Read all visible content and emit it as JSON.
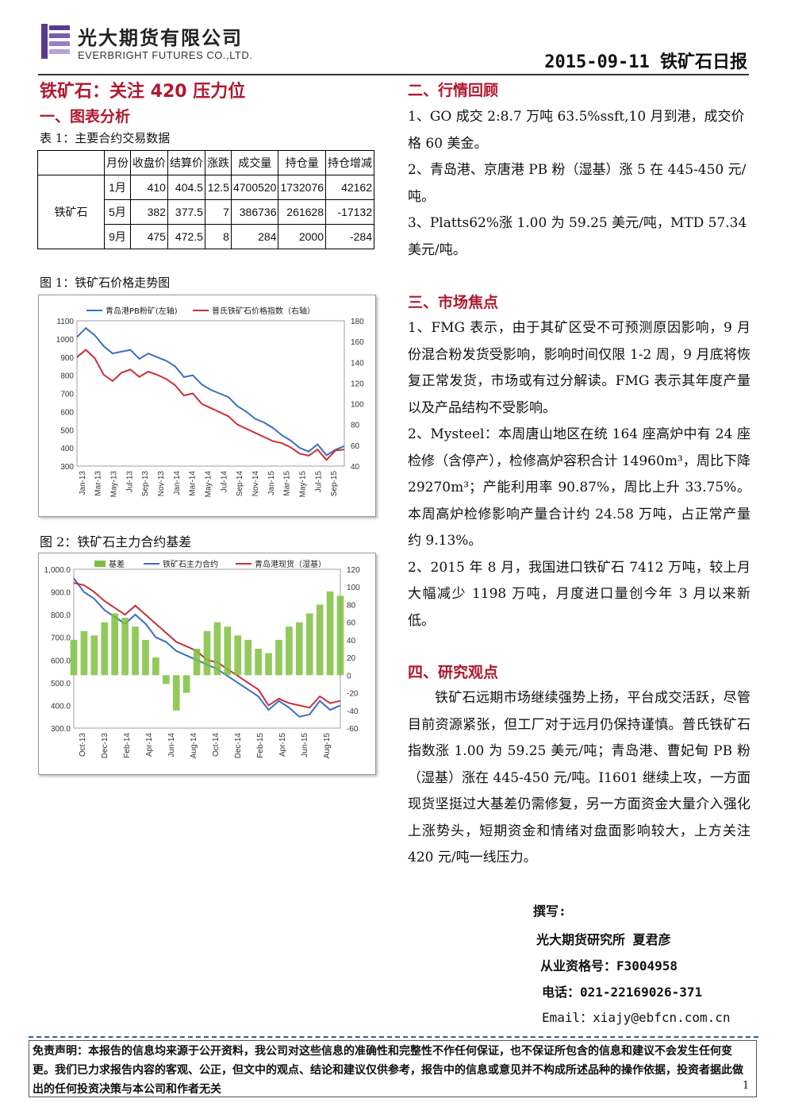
{
  "header": {
    "company_cn": "光大期货有限公司",
    "company_en": "EVERBRIGHT FUTURES CO.,LTD.",
    "date_title": "2015-09-11 铁矿石日报"
  },
  "title": "铁矿石：关注 420 压力位",
  "section1": {
    "heading": "一、图表分析",
    "table_caption": "表 1：主要合约交易数据",
    "table": {
      "headers": [
        "月份",
        "收盘价",
        "结算价",
        "涨跌",
        "成交量",
        "持仓量",
        "持仓增减"
      ],
      "row_label": "铁矿石",
      "rows": [
        [
          "1月",
          "410",
          "404.5",
          "12.5",
          "4700520",
          "1732076",
          "42162"
        ],
        [
          "5月",
          "382",
          "377.5",
          "7",
          "386736",
          "261628",
          "-17132"
        ],
        [
          "9月",
          "475",
          "472.5",
          "8",
          "284",
          "2000",
          "-284"
        ]
      ]
    },
    "fig1_caption": "图 1：铁矿石价格走势图",
    "fig2_caption": "图 2：铁矿石主力合约基差"
  },
  "chart_data": [
    {
      "type": "line",
      "legend": [
        "青岛港PB粉矿(左轴)",
        "普氏铁矿石价格指数（右轴）"
      ],
      "x_labels": [
        "Jan-13",
        "Mar-13",
        "May-13",
        "Jul-13",
        "Sep-13",
        "Nov-13",
        "Jan-14",
        "Mar-14",
        "May-14",
        "Jul-14",
        "Sep-14",
        "Nov-14",
        "Jan-15",
        "Mar-15",
        "May-15",
        "Jul-15",
        "Sep-15"
      ],
      "y_left_ticks": [
        "1100",
        "1000",
        "900",
        "800",
        "700",
        "600",
        "500",
        "400",
        "300"
      ],
      "y_right_ticks": [
        "180",
        "160",
        "140",
        "120",
        "100",
        "80",
        "60",
        "40"
      ],
      "ylim_left": [
        300,
        1100
      ],
      "ylim_right": [
        40,
        180
      ],
      "series": [
        {
          "name": "青岛港PB粉矿(左轴)",
          "axis": "left",
          "color": "#3a6fc0",
          "values": [
            1010,
            1060,
            1020,
            960,
            920,
            930,
            940,
            890,
            920,
            900,
            880,
            850,
            790,
            800,
            750,
            720,
            700,
            680,
            630,
            600,
            560,
            540,
            510,
            470,
            440,
            400,
            380,
            420,
            360,
            390,
            410
          ]
        },
        {
          "name": "普氏铁矿石价格指数（右轴）",
          "axis": "right",
          "color": "#c8303a",
          "values": [
            145,
            152,
            144,
            128,
            122,
            130,
            133,
            126,
            131,
            128,
            124,
            118,
            108,
            110,
            100,
            96,
            92,
            88,
            80,
            76,
            72,
            68,
            64,
            62,
            58,
            52,
            50,
            56,
            46,
            55,
            56
          ]
        }
      ]
    },
    {
      "type": "line",
      "legend": [
        "基差",
        "铁矿石主力合约",
        "青岛港现货（湿基）"
      ],
      "x_labels": [
        "Oct-13",
        "Dec-13",
        "Feb-14",
        "Apr-14",
        "Jun-14",
        "Aug-14",
        "Oct-14",
        "Dec-14",
        "Feb-15",
        "Apr-15",
        "Jun-15",
        "Aug-15"
      ],
      "y_left_ticks": [
        "1,000.0",
        "900.0",
        "800.0",
        "700.0",
        "600.0",
        "500.0",
        "400.0",
        "300.0"
      ],
      "y_right_ticks": [
        "120",
        "100",
        "80",
        "60",
        "40",
        "20",
        "0",
        "-20",
        "-40",
        "-60"
      ],
      "ylim_left": [
        300,
        1000
      ],
      "ylim_right": [
        -60,
        120
      ],
      "series": [
        {
          "name": "铁矿石主力合约",
          "axis": "left",
          "color": "#3a6fc0",
          "values": [
            960,
            900,
            870,
            820,
            790,
            760,
            800,
            760,
            700,
            680,
            640,
            620,
            600,
            580,
            560,
            530,
            500,
            470,
            440,
            380,
            420,
            390,
            350,
            360,
            420,
            380,
            400
          ]
        },
        {
          "name": "青岛港现货（湿基）",
          "axis": "left",
          "color": "#c8303a",
          "values": [
            940,
            930,
            900,
            860,
            830,
            800,
            840,
            800,
            760,
            720,
            680,
            660,
            640,
            600,
            590,
            560,
            530,
            500,
            470,
            400,
            430,
            410,
            400,
            390,
            440,
            410,
            420
          ]
        },
        {
          "name": "基差",
          "axis": "right",
          "color": "#7fbf3f",
          "values": [
            40,
            50,
            45,
            60,
            70,
            65,
            55,
            40,
            20,
            -10,
            -40,
            -20,
            30,
            50,
            60,
            55,
            45,
            40,
            30,
            25,
            40,
            55,
            60,
            70,
            80,
            95,
            90
          ]
        }
      ]
    }
  ],
  "section2": {
    "heading": "二、行情回顾",
    "paragraphs": [
      "1、GO 成交 2:8.7 万吨 63.5%ssft,10 月到港，成交价格 60 美金。",
      "2、青岛港、京唐港 PB 粉（湿基）涨 5 在 445-450 元/吨。",
      "3、Platts62%涨 1.00 为 59.25 美元/吨，MTD 57.34 美元/吨。"
    ]
  },
  "section3": {
    "heading": "三、市场焦点",
    "paragraphs": [
      "1、FMG 表示，由于其矿区受不可预测原因影响，9 月份混合粉发货受影响，影响时间仅限 1-2 周，9 月底将恢复正常发货，市场或有过分解读。FMG 表示其年度产量以及产品结构不受影响。",
      "2、Mysteel：本周唐山地区在统 164 座高炉中有 24 座检修（含停产），检修高炉容积合计 14960m³，周比下降 29270m³；产能利用率 90.87%，周比上升 33.75%。本周高炉检修影响产量合计约 24.58 万吨，占正常产量约 9.13%。",
      "2、2015 年 8 月，我国进口铁矿石 7412 万吨，较上月大幅减少 1198 万吨，月度进口量创今年 3 月以来新低。"
    ]
  },
  "section4": {
    "heading": "四、研究观点",
    "paragraph": "铁矿石远期市场继续强势上扬，平台成交活跃，尽管目前资源紧张，但工厂对于远月仍保持谨慎。普氏铁矿石指数涨 1.00 为 59.25 美元/吨；青岛港、曹妃甸 PB 粉（湿基）涨在 445-450 元/吨。I1601 继续上攻，一方面现货坚挺过大基差仍需修复，另一方面资金大量介入强化上涨势头，短期资金和情绪对盘面影响较大，上方关注 420 元/吨一线压力。"
  },
  "signature": {
    "label": "撰写:",
    "author": "光大期货研究所  夏君彦",
    "license": "从业资格号：F3004958",
    "phone": "电话：021-22169026-371",
    "email": "Email：xiajy@ebfcn.com.cn"
  },
  "disclaimer": "免责声明：本报告的信息均来源于公开资料，我公司对这些信息的准确性和完整性不作任何保证，也不保证所包含的信息和建议不会发生任何变更。我们已力求报告内容的客观、公正，但文中的观点、结论和建议仅供参考，报告中的信息或意见并不构成所述品种的操作依据，投资者据此做出的任何投资决策与本公司和作者无关",
  "page_number": "1",
  "colors": {
    "accent_red": "#b0182e",
    "logo_purple": "#5a3b8c"
  }
}
